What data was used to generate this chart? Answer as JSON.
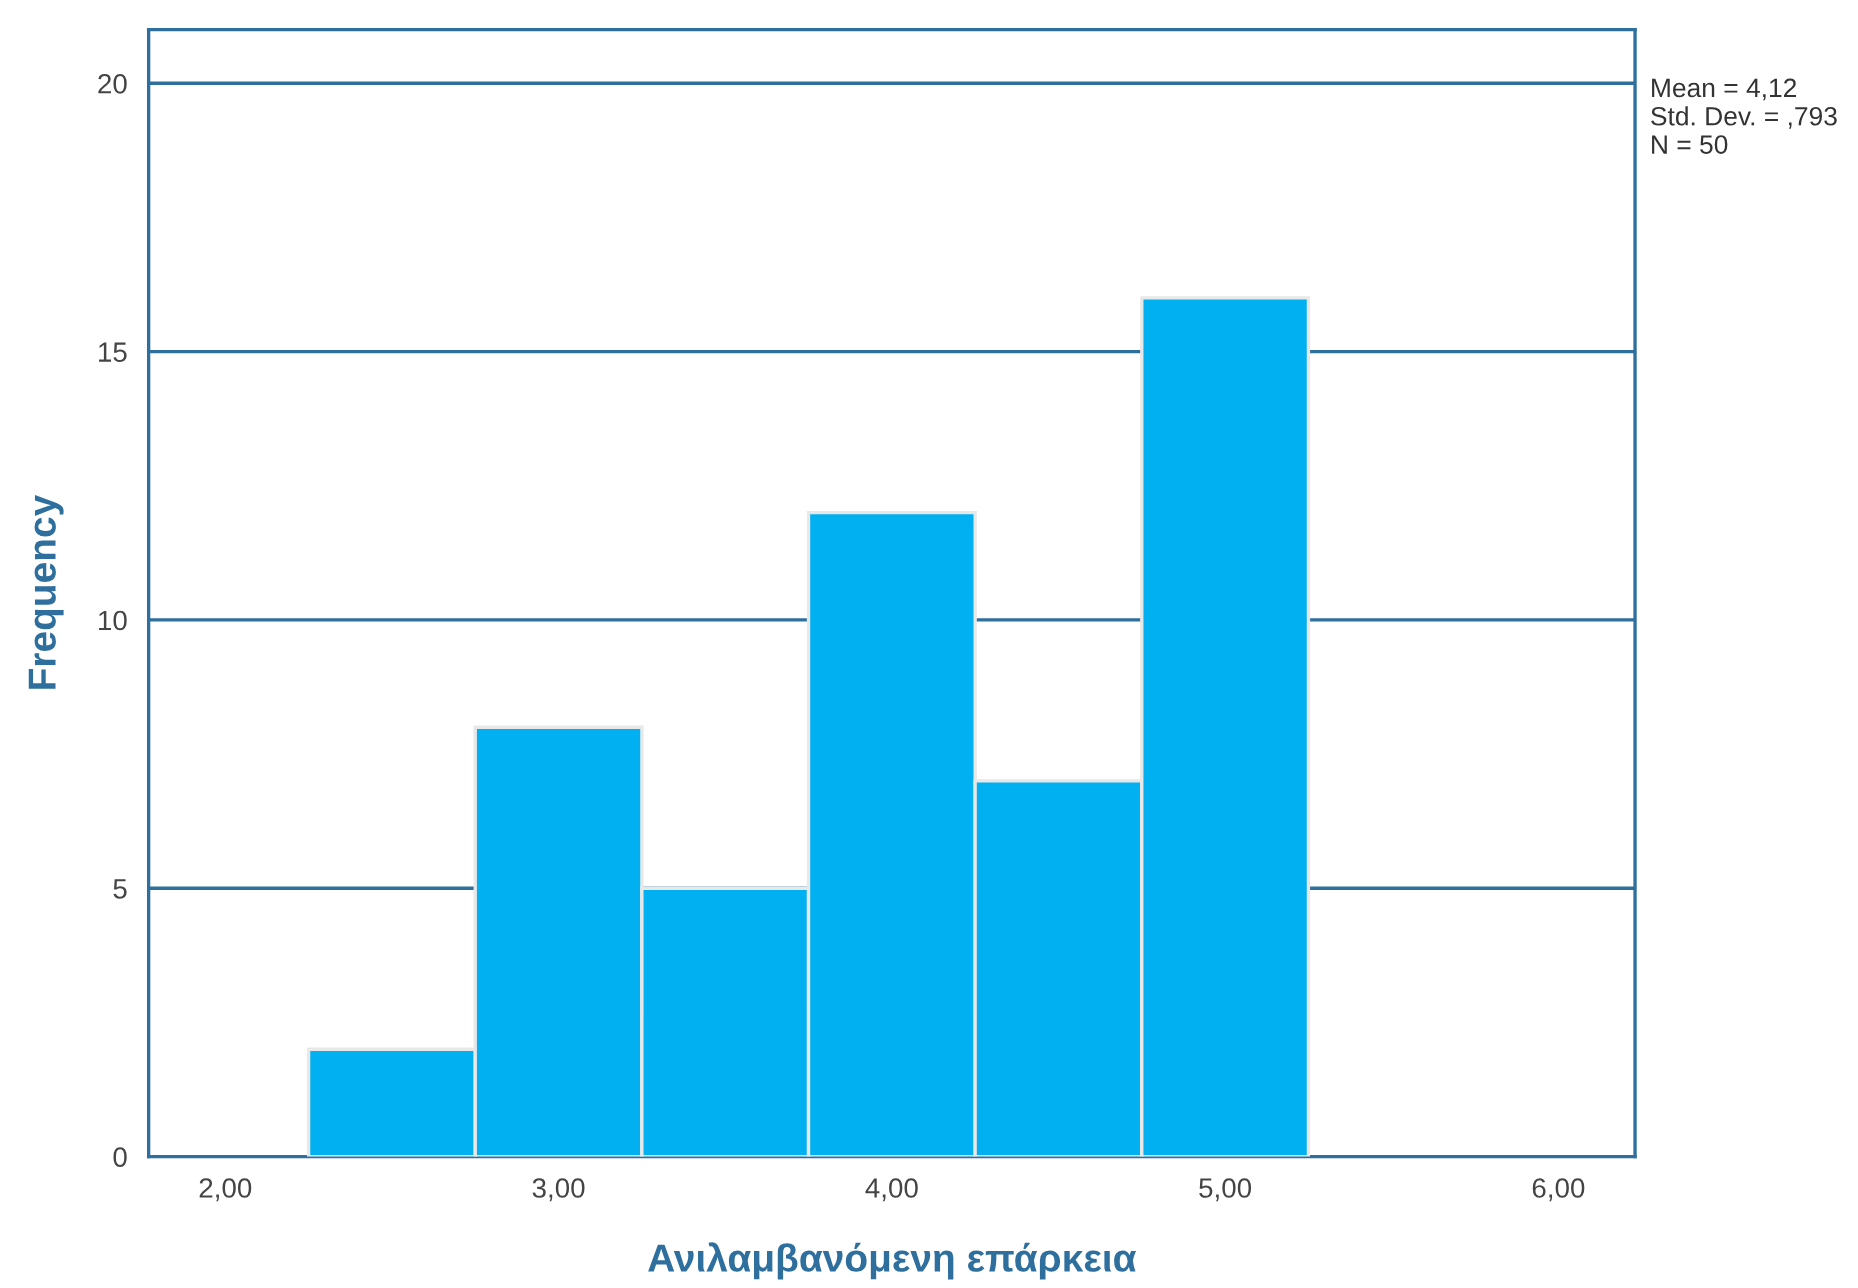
{
  "chart_data": {
    "type": "histogram",
    "xlabel": "Ανιλαμβανόμενη επάρκεια",
    "ylabel": "Frequency",
    "bins": [
      2.25,
      2.75,
      3.25,
      3.75,
      4.25,
      4.75,
      5.25
    ],
    "values": [
      2,
      8,
      5,
      12,
      7,
      16
    ],
    "color": "#00b0f0",
    "xlim": [
      1.77,
      6.23
    ],
    "xticks": [
      {
        "value": 2,
        "label": "2,00"
      },
      {
        "value": 3,
        "label": "3,00"
      },
      {
        "value": 4,
        "label": "4,00"
      },
      {
        "value": 5,
        "label": "5,00"
      },
      {
        "value": 6,
        "label": "6,00"
      }
    ],
    "ylim": [
      0,
      21
    ],
    "yticks": [
      0,
      5,
      10,
      15,
      20
    ],
    "grid": "y",
    "annotations": [
      "Mean = 4,12",
      "Std. Dev. = ,793",
      "N = 50"
    ]
  }
}
